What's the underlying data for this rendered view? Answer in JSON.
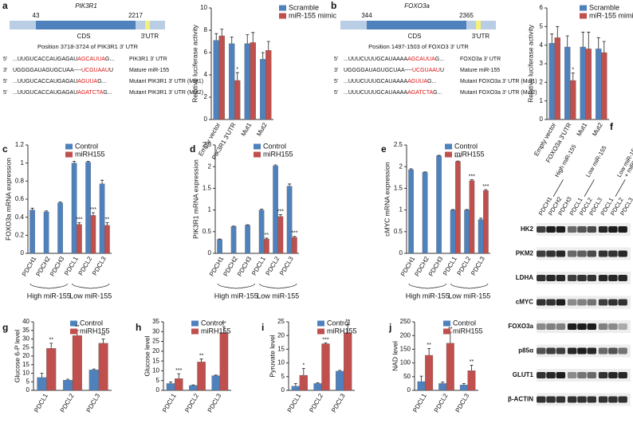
{
  "chart_data": [
    {
      "type": "bar",
      "panel": "a",
      "y_label": "Relative luciferase activity",
      "categories": [
        "Empty vector",
        "PIK3R1 3'UTR",
        "Mut1",
        "Mut2"
      ],
      "ylim": [
        0,
        10
      ],
      "yticks": [
        0,
        2,
        4,
        6,
        8,
        10
      ],
      "series": [
        {
          "name": "Scramble",
          "color": "#4f81bd",
          "values": [
            7.1,
            6.8,
            6.8,
            5.4
          ],
          "errors": [
            0.6,
            0.6,
            0.8,
            0.6
          ],
          "stars": [
            null,
            null,
            null,
            null
          ]
        },
        {
          "name": "miR-155 mimic",
          "color": "#c0504d",
          "values": [
            7.5,
            3.5,
            6.9,
            6.2
          ],
          "errors": [
            0.6,
            0.7,
            0.9,
            0.8
          ],
          "stars": [
            null,
            "*",
            null,
            null
          ]
        }
      ]
    },
    {
      "type": "bar",
      "panel": "b",
      "y_label": "Relative luciferase activity",
      "categories": [
        "Empty vector",
        "FOXO3a 3'UTR",
        "Mut1",
        "Mut2"
      ],
      "ylim": [
        0,
        6
      ],
      "yticks": [
        0,
        1,
        2,
        3,
        4,
        5,
        6
      ],
      "series": [
        {
          "name": "Scramble",
          "color": "#4f81bd",
          "values": [
            4.1,
            3.9,
            3.9,
            3.8
          ],
          "errors": [
            0.5,
            0.6,
            0.8,
            0.6
          ],
          "stars": [
            null,
            null,
            null,
            null
          ]
        },
        {
          "name": "miR-155 mimic",
          "color": "#c0504d",
          "values": [
            4.4,
            2.1,
            3.8,
            3.6
          ],
          "errors": [
            0.6,
            0.4,
            0.9,
            0.6
          ],
          "stars": [
            null,
            "*",
            null,
            null
          ]
        }
      ]
    },
    {
      "type": "bar",
      "panel": "c",
      "y_label": "FOXO3a mRNA expression",
      "categories": [
        "PDCH1",
        "PDCH2",
        "PDCH3",
        "PDCL1",
        "PDCL2",
        "PDCL3"
      ],
      "groups": [
        "High miR-155",
        "Low miR-155"
      ],
      "ylim": [
        0,
        1.2
      ],
      "yticks": [
        0,
        0.2,
        0.4,
        0.6,
        0.8,
        1,
        1.2
      ],
      "series": [
        {
          "name": "Control",
          "color": "#4f81bd",
          "values": [
            0.48,
            0.46,
            0.56,
            1.0,
            1.01,
            0.77
          ],
          "errors": [
            0.02,
            0.01,
            0.01,
            0.02,
            0.01,
            0.04
          ],
          "stars": [
            null,
            null,
            null,
            null,
            null,
            null
          ]
        },
        {
          "name": "miRH155",
          "color": "#c0504d",
          "values": [
            null,
            null,
            null,
            0.32,
            0.42,
            0.31
          ],
          "errors": [
            null,
            null,
            null,
            0.02,
            0.03,
            0.03
          ],
          "stars": [
            null,
            null,
            null,
            "***",
            "***",
            "**"
          ]
        }
      ]
    },
    {
      "type": "bar",
      "panel": "d",
      "y_label": "PIK3R1 mRNA expression",
      "categories": [
        "PDCH1",
        "PDCH2",
        "PDCH3",
        "PDCL1",
        "PDCL2",
        "PDCL3"
      ],
      "groups": [
        "High miR-155",
        "Low miR-155"
      ],
      "ylim": [
        0,
        2.5
      ],
      "yticks": [
        0,
        0.5,
        1,
        1.5,
        2,
        2.5
      ],
      "series": [
        {
          "name": "Control",
          "color": "#4f81bd",
          "values": [
            0.32,
            0.62,
            0.65,
            1.0,
            2.02,
            1.55
          ],
          "errors": [
            0.01,
            0.01,
            0.01,
            0.02,
            0.02,
            0.05
          ],
          "stars": [
            null,
            null,
            null,
            null,
            null,
            null
          ]
        },
        {
          "name": "miRH155",
          "color": "#c0504d",
          "values": [
            null,
            null,
            null,
            0.33,
            0.85,
            0.37
          ],
          "errors": [
            null,
            null,
            null,
            0.02,
            0.04,
            0.02
          ],
          "stars": [
            null,
            null,
            null,
            "**",
            "***",
            "***"
          ]
        }
      ]
    },
    {
      "type": "bar",
      "panel": "e",
      "y_label": "cMYC mRNA expression",
      "categories": [
        "PDCH1",
        "PDCH2",
        "PDCH3",
        "PDCL1",
        "PDCL2",
        "PDCL3"
      ],
      "groups": [
        "High miR-155",
        "Low miR-155"
      ],
      "ylim": [
        0,
        2.5
      ],
      "yticks": [
        0,
        0.5,
        1,
        1.5,
        2,
        2.5
      ],
      "series": [
        {
          "name": "Control",
          "color": "#4f81bd",
          "values": [
            1.93,
            1.87,
            2.25,
            1.0,
            1.0,
            0.78
          ],
          "errors": [
            0.02,
            0.01,
            0.01,
            0.01,
            0.01,
            0.03
          ],
          "stars": [
            null,
            null,
            null,
            null,
            null,
            null
          ]
        },
        {
          "name": "miRH155",
          "color": "#c0504d",
          "values": [
            null,
            null,
            null,
            2.12,
            1.68,
            1.45
          ],
          "errors": [
            null,
            null,
            null,
            0.01,
            0.02,
            0.02
          ],
          "stars": [
            null,
            null,
            null,
            "***",
            "***",
            "***"
          ]
        }
      ]
    },
    {
      "type": "bar",
      "panel": "g",
      "y_label": "Glucose 6-P level",
      "categories": [
        "PDCL1",
        "PDCL2",
        "PDCL3"
      ],
      "ylim": [
        0,
        40
      ],
      "yticks": [
        0,
        5,
        10,
        15,
        20,
        25,
        30,
        35,
        40
      ],
      "series": [
        {
          "name": "Control",
          "color": "#4f81bd",
          "values": [
            7.5,
            6,
            12
          ],
          "errors": [
            2.5,
            0.5,
            0.5
          ],
          "stars": [
            null,
            null,
            null
          ]
        },
        {
          "name": "miRH155",
          "color": "#c0504d",
          "values": [
            24.5,
            32,
            27.5
          ],
          "errors": [
            3,
            3,
            2.5
          ],
          "stars": [
            "**",
            "**",
            "**"
          ]
        }
      ]
    },
    {
      "type": "bar",
      "panel": "h",
      "y_label": "Glucose level",
      "categories": [
        "PDCL1",
        "PDCL2",
        "PDCL3"
      ],
      "ylim": [
        0,
        35
      ],
      "yticks": [
        0,
        5,
        10,
        15,
        20,
        25,
        30,
        35
      ],
      "series": [
        {
          "name": "Control",
          "color": "#4f81bd",
          "values": [
            3.5,
            2.5,
            7.5
          ],
          "errors": [
            0.8,
            0.3,
            0.3
          ],
          "stars": [
            null,
            null,
            null
          ]
        },
        {
          "name": "miRH155",
          "color": "#c0504d",
          "values": [
            6,
            14.5,
            29.5
          ],
          "errors": [
            2.5,
            1.5,
            3
          ],
          "stars": [
            "***",
            "**",
            "**"
          ]
        }
      ]
    },
    {
      "type": "bar",
      "panel": "i",
      "y_label": "Pyruvate level",
      "categories": [
        "PDCL1",
        "PDCL2",
        "PDCL3"
      ],
      "ylim": [
        0,
        25
      ],
      "yticks": [
        0,
        5,
        10,
        15,
        20,
        25
      ],
      "series": [
        {
          "name": "Control",
          "color": "#4f81bd",
          "values": [
            1.5,
            2.5,
            7
          ],
          "errors": [
            1,
            0.3,
            0.3
          ],
          "stars": [
            null,
            null,
            null
          ]
        },
        {
          "name": "miRH155",
          "color": "#c0504d",
          "values": [
            5.5,
            17,
            21
          ],
          "errors": [
            2.5,
            0.3,
            3
          ],
          "stars": [
            "*",
            "***",
            "**"
          ]
        }
      ]
    },
    {
      "type": "bar",
      "panel": "j",
      "y_label": "NAD level",
      "categories": [
        "PDCL1",
        "PDCL2",
        "PDCL3"
      ],
      "ylim": [
        0,
        250
      ],
      "yticks": [
        0,
        50,
        100,
        150,
        200,
        250
      ],
      "series": [
        {
          "name": "Control",
          "color": "#4f81bd",
          "values": [
            32,
            25,
            20
          ],
          "errors": [
            20,
            5,
            5
          ],
          "stars": [
            null,
            null,
            null
          ]
        },
        {
          "name": "miRH155",
          "color": "#c0504d",
          "values": [
            128,
            172,
            72
          ],
          "errors": [
            25,
            40,
            20
          ],
          "stars": [
            "**",
            "**",
            "**"
          ]
        }
      ]
    }
  ],
  "diagrams": [
    {
      "gene": "PIK3R1",
      "start": 43,
      "end": 2217,
      "cds_label": "CDS",
      "utr_label": "3'UTR",
      "position": "Position 3718-3724 of PIK3R1 3' UTR",
      "sequences": [
        {
          "strand": "5'",
          "seq": "...UUGUCACCAUGAGAU",
          "seed": "AGCAUUA",
          "tail": "G...",
          "label": "PIK3R1 3' UTR"
        },
        {
          "strand": "3'",
          "seq": "UGGGGAUAGUGCUAA----",
          "seed": "UCGUAAU",
          "tail": "U",
          "label": "Mature miR-155"
        },
        {
          "strand": "5'",
          "seq": "...UUGUCACCAUGAGAU",
          "seed": "AGUUA",
          "tail": "G...",
          "label": "Mutant PIK3R1 3' UTR (Mut1)"
        },
        {
          "strand": "5'",
          "seq": "...UUGUCACCAUGAGAU",
          "seed": "AGATCTA",
          "tail": "G...",
          "label": "Mutant PIK3R1 3' UTR (Mut2)"
        }
      ]
    },
    {
      "gene": "FOXO3a",
      "start": 344,
      "end": 2365,
      "cds_label": "CDS",
      "utr_label": "3'UTR",
      "position": "Position 1497-1503 of FOXO3 3' UTR",
      "sequences": [
        {
          "strand": "5'",
          "seq": "...UUUCUUUGCAUAAAA",
          "seed": "AGCAUUA",
          "tail": "G...",
          "label": "FOXO3a 3' UTR"
        },
        {
          "strand": "3'",
          "seq": "UGGGGAUAGUGCUAA----",
          "seed": "UCGUAAU",
          "tail": "U",
          "label": "Mature miR-155"
        },
        {
          "strand": "5'",
          "seq": "...UUUCUUUGCAUAAAA",
          "seed": "AGUUA",
          "tail": "G...",
          "label": "Mutant FOXO3a 3' UTR (Mut1)"
        },
        {
          "strand": "5'",
          "seq": "...UUUCUUUGCAUAAAA",
          "seed": "AGATCTA",
          "tail": "G...",
          "label": "Mutant FOXO3a 3' UTR (Mut2)"
        }
      ]
    }
  ],
  "blot": {
    "panel": "f",
    "lanes": [
      "PDCH1",
      "PDCH2",
      "PDCH3",
      "PDCL1",
      "PDCL2",
      "PDCL3",
      "PDCL1",
      "PDCL2",
      "PDCL3"
    ],
    "groups": [
      [
        "High miR-155"
      ],
      [
        "Low miR-155"
      ],
      [
        "Low miR-155",
        "+ miRH155"
      ]
    ],
    "rows": [
      "HK2",
      "PKM2",
      "LDHA",
      "cMYC",
      "FOXO3a",
      "p85α",
      "GLUT1",
      "β-ACTIN"
    ]
  }
}
